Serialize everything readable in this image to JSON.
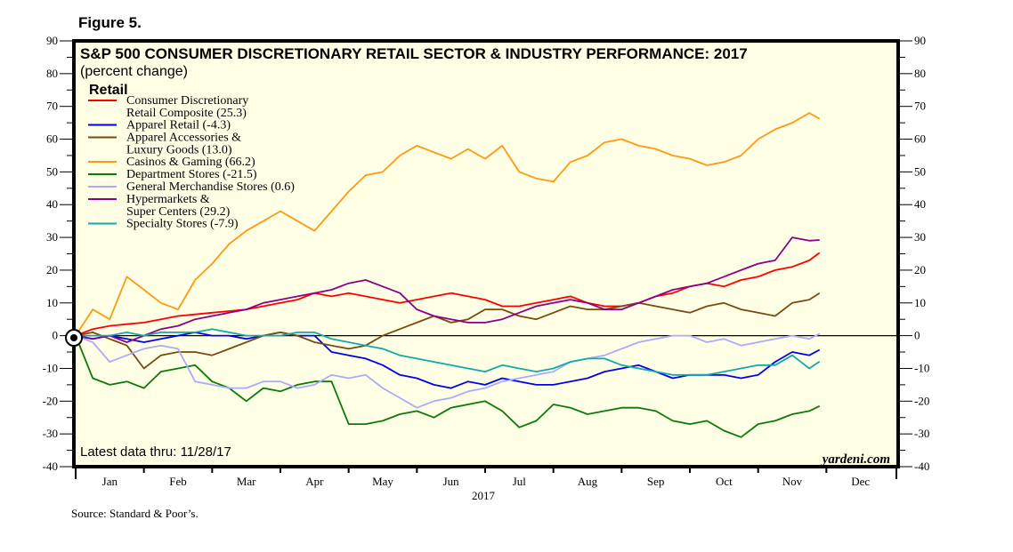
{
  "figure_label": "Figure 5.",
  "source": "Source: Standard & Poor’s.",
  "brand": "yardeni.com",
  "latest_note": "Latest data thru: 11/28/17",
  "chart_data": {
    "type": "line",
    "title": "S&P 500 CONSUMER DISCRETIONARY RETAIL SECTOR & INDUSTRY PERFORMANCE: 2017",
    "subtitle": "(percent change)",
    "legend_title": "Retail",
    "legend_position": "top-left",
    "xlabel": "2017",
    "ylabel": "",
    "ylim": [
      -40,
      90
    ],
    "yticks": [
      -40,
      -30,
      -20,
      -10,
      0,
      10,
      20,
      30,
      40,
      50,
      60,
      70,
      80,
      90
    ],
    "ytick_labels": [
      "-40",
      "-30",
      "-20",
      "-10",
      "0",
      "10",
      "20",
      "30",
      "40",
      "50",
      "60",
      "70",
      "80",
      "90"
    ],
    "months": [
      "Jan",
      "Feb",
      "Mar",
      "Apr",
      "May",
      "Jun",
      "Jul",
      "Aug",
      "Sep",
      "Oct",
      "Nov",
      "Dec"
    ],
    "xlim_months": [
      0,
      12
    ],
    "zero_line": true,
    "grid": false,
    "background": "#ffffe6",
    "x": [
      0,
      0.25,
      0.5,
      0.75,
      1.0,
      1.25,
      1.5,
      1.75,
      2.0,
      2.25,
      2.5,
      2.75,
      3.0,
      3.25,
      3.5,
      3.75,
      4.0,
      4.25,
      4.5,
      4.75,
      5.0,
      5.25,
      5.5,
      5.75,
      6.0,
      6.25,
      6.5,
      6.75,
      7.0,
      7.25,
      7.5,
      7.75,
      8.0,
      8.25,
      8.5,
      8.75,
      9.0,
      9.25,
      9.5,
      9.75,
      10.0,
      10.25,
      10.5,
      10.75,
      10.9
    ],
    "series": [
      {
        "name": "Consumer Discretionary Retail Composite",
        "label_line1": "Consumer Discretionary",
        "label_line2": "Retail Composite (25.3)",
        "color": "#ff0000",
        "values": [
          0,
          2,
          3,
          3.5,
          4,
          5,
          6,
          6.5,
          7,
          7.5,
          8,
          9,
          10,
          11,
          13,
          12,
          13,
          12,
          11,
          10,
          11,
          12,
          13,
          12,
          11,
          9,
          9,
          10,
          11,
          12,
          10,
          9,
          9,
          10,
          12,
          13,
          15,
          16,
          15,
          17,
          18,
          20,
          21,
          23,
          25.3
        ]
      },
      {
        "name": "Apparel Retail",
        "label_line1": "Apparel Retail (-4.3)",
        "color": "#0000ee",
        "values": [
          0,
          -1,
          0,
          -1,
          -2,
          -1,
          0,
          1,
          0,
          0,
          -1,
          0,
          1,
          0,
          0,
          -5,
          -6,
          -7,
          -9,
          -12,
          -13,
          -15,
          -16,
          -14,
          -15,
          -13,
          -14,
          -15,
          -15,
          -14,
          -13,
          -11,
          -10,
          -9,
          -11,
          -13,
          -12,
          -12,
          -12,
          -13,
          -12,
          -8,
          -5,
          -6,
          -4.3
        ]
      },
      {
        "name": "Apparel Accessories & Luxury Goods",
        "label_line1": "Apparel Accessories &",
        "label_line2": "Luxury Goods (13.0)",
        "color": "#7a4a10",
        "values": [
          0,
          1,
          -1,
          -3,
          -10,
          -6,
          -5,
          -5,
          -6,
          -4,
          -2,
          0,
          1,
          0,
          -2,
          -3,
          -4,
          -3,
          0,
          2,
          4,
          6,
          4,
          5,
          8,
          8,
          6,
          5,
          7,
          9,
          8,
          8,
          9,
          10,
          9,
          8,
          7,
          9,
          10,
          8,
          7,
          6,
          10,
          11,
          13.0
        ]
      },
      {
        "name": "Casinos & Gaming",
        "label_line1": "Casinos & Gaming (66.2)",
        "color": "#ff9910",
        "values": [
          0,
          8,
          5,
          18,
          14,
          10,
          8,
          17,
          22,
          28,
          32,
          35,
          38,
          35,
          32,
          38,
          44,
          49,
          50,
          55,
          58,
          56,
          54,
          57,
          54,
          58,
          50,
          48,
          47,
          53,
          55,
          59,
          60,
          58,
          57,
          55,
          54,
          52,
          53,
          55,
          60,
          63,
          65,
          68,
          66.2
        ]
      },
      {
        "name": "Department Stores",
        "label_line1": "Department Stores (-21.5)",
        "color": "#0a7a0a",
        "values": [
          0,
          -13,
          -15,
          -14,
          -16,
          -11,
          -10,
          -9,
          -14,
          -16,
          -20,
          -16,
          -17,
          -15,
          -14,
          -14,
          -27,
          -27,
          -26,
          -24,
          -23,
          -25,
          -22,
          -21,
          -20,
          -23,
          -28,
          -26,
          -21,
          -22,
          -24,
          -23,
          -22,
          -22,
          -23,
          -26,
          -27,
          -26,
          -29,
          -31,
          -27,
          -26,
          -24,
          -23,
          -21.5
        ]
      },
      {
        "name": "General Merchandise Stores",
        "label_line1": "General Merchandise Stores (0.6)",
        "color": "#aaaaff",
        "values": [
          0,
          -2,
          -8,
          -6,
          -4,
          -3,
          -4,
          -14,
          -15,
          -16,
          -16,
          -14,
          -14,
          -16,
          -15,
          -12,
          -13,
          -12,
          -16,
          -19,
          -22,
          -20,
          -19,
          -17,
          -16,
          -14,
          -13,
          -12,
          -11,
          -8,
          -7,
          -6,
          -4,
          -2,
          -1,
          0,
          0,
          -2,
          -1,
          -3,
          -2,
          -1,
          0,
          -1,
          0.6
        ]
      },
      {
        "name": "Hypermarkets & Super Centers",
        "label_line1": "Hypermarkets &",
        "label_line2": "Super Centers (29.2)",
        "color": "#8b008b",
        "values": [
          0,
          -1,
          0,
          -2,
          0,
          2,
          3,
          5,
          6,
          7,
          8,
          10,
          11,
          12,
          13,
          14,
          16,
          17,
          15,
          13,
          8,
          6,
          5,
          4,
          4,
          5,
          7,
          9,
          10,
          11,
          10,
          8,
          8,
          10,
          12,
          14,
          15,
          16,
          18,
          20,
          22,
          23,
          30,
          29,
          29.2
        ]
      },
      {
        "name": "Specialty Stores",
        "label_line1": "Specialty Stores (-7.9)",
        "color": "#10aaaa",
        "values": [
          0,
          0,
          0,
          1,
          0,
          1,
          1,
          1,
          2,
          1,
          0,
          0,
          0,
          1,
          1,
          -1,
          -2,
          -3,
          -4,
          -6,
          -7,
          -8,
          -9,
          -10,
          -11,
          -9,
          -10,
          -11,
          -10,
          -8,
          -7,
          -7,
          -9,
          -10,
          -11,
          -12,
          -12,
          -12,
          -11,
          -10,
          -9,
          -9,
          -6,
          -10,
          -7.9
        ]
      }
    ]
  }
}
